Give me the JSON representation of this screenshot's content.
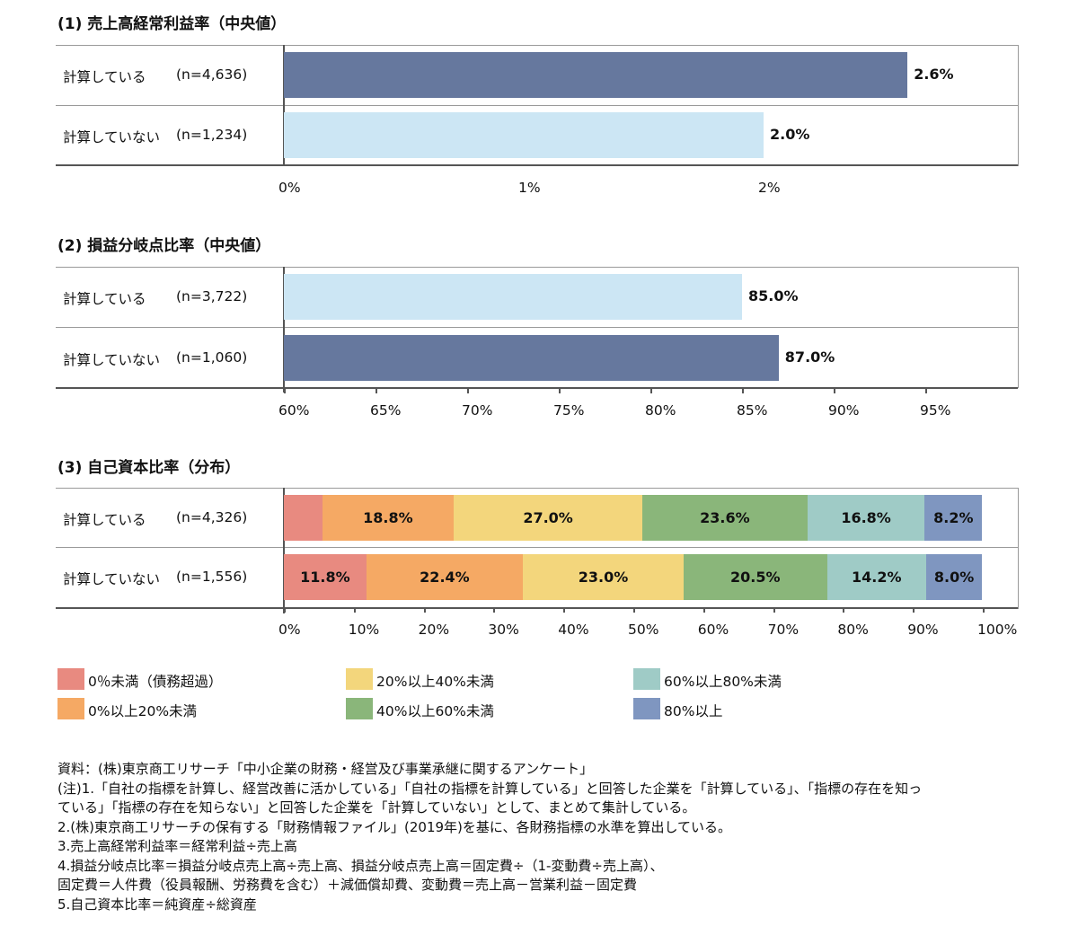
{
  "colors": {
    "dark_blue": "#66789e",
    "light_blue": "#cce6f4",
    "axis": "#555555",
    "grid": "#9a9a9a",
    "seg": [
      "#e88a80",
      "#f5a964",
      "#f3d67c",
      "#8ab67a",
      "#9fcbc6",
      "#7f96c0"
    ]
  },
  "chart_data": [
    {
      "type": "bar",
      "orientation": "horizontal",
      "title": "(1) 売上高経常利益率（中央値）",
      "categories": [
        "計算している",
        "計算していない"
      ],
      "n_labels": [
        "(n=4,636)",
        "(n=1,234)"
      ],
      "values": [
        2.6,
        2.0
      ],
      "value_labels": [
        "2.6%",
        "2.0%"
      ],
      "bar_colors": [
        "#66789e",
        "#cce6f4"
      ],
      "xlim": [
        0,
        3
      ],
      "xticks": [
        0,
        1,
        2
      ],
      "xtick_labels": [
        "0%",
        "1%",
        "2%"
      ]
    },
    {
      "type": "bar",
      "orientation": "horizontal",
      "title": "(2) 損益分岐点比率（中央値）",
      "categories": [
        "計算している",
        "計算していない"
      ],
      "n_labels": [
        "(n=3,722)",
        "(n=1,060)"
      ],
      "values": [
        85.0,
        87.0
      ],
      "value_labels": [
        "85.0%",
        "87.0%"
      ],
      "bar_colors": [
        "#cce6f4",
        "#66789e"
      ],
      "xlim": [
        60,
        100
      ],
      "xticks": [
        60,
        65,
        70,
        75,
        80,
        85,
        90,
        95
      ],
      "xtick_labels": [
        "60%",
        "65%",
        "70%",
        "75%",
        "80%",
        "85%",
        "90%",
        "95%"
      ]
    },
    {
      "type": "bar",
      "orientation": "horizontal",
      "stacked": true,
      "title": "(3) 自己資本比率（分布）",
      "categories": [
        "計算している",
        "計算していない"
      ],
      "n_labels": [
        "(n=4,326)",
        "(n=1,556)"
      ],
      "series": [
        {
          "name": "0％未満（債務超過）",
          "values": [
            5.5,
            11.8
          ],
          "labels": [
            "",
            "11.8%"
          ]
        },
        {
          "name": "0%以上20%未満",
          "values": [
            18.8,
            22.4
          ],
          "labels": [
            "18.8%",
            "22.4%"
          ]
        },
        {
          "name": "20%以上40%未満",
          "values": [
            27.0,
            23.0
          ],
          "labels": [
            "27.0%",
            "23.0%"
          ]
        },
        {
          "name": "40%以上60%未満",
          "values": [
            23.6,
            20.5
          ],
          "labels": [
            "23.6%",
            "20.5%"
          ]
        },
        {
          "name": "60%以上80%未満",
          "values": [
            16.8,
            14.2
          ],
          "labels": [
            "16.8%",
            "14.2%"
          ]
        },
        {
          "name": "80%以上",
          "values": [
            8.2,
            8.0
          ],
          "labels": [
            "8.2%",
            "8.0%"
          ]
        }
      ],
      "xlim": [
        0,
        105
      ],
      "xticks": [
        0,
        10,
        20,
        30,
        40,
        50,
        60,
        70,
        80,
        90,
        100
      ],
      "xtick_labels": [
        "0%",
        "10%",
        "20%",
        "30%",
        "40%",
        "50%",
        "60%",
        "70%",
        "80%",
        "90%",
        "100%"
      ],
      "legend_position": "bottom"
    }
  ],
  "notes": [
    "資料：(株)東京商工リサーチ「中小企業の財務・経営及び事業承継に関するアンケート」",
    "(注)1.「自社の指標を計算し、経営改善に活かしている」「自社の指標を計算している」と回答した企業を「計算している」、「指標の存在を知っ",
    "ている」「指標の存在を知らない」と回答した企業を「計算していない」として、まとめて集計している。",
    "2.(株)東京商工リサーチの保有する「財務情報ファイル」(2019年)を基に、各財務指標の水準を算出している。",
    "3.売上高経常利益率＝経常利益÷売上高",
    "4.損益分岐点比率＝損益分岐点売上高÷売上高、損益分岐点売上高＝固定費÷（1-変動費÷売上高）、",
    "固定費＝人件費（役員報酬、労務費を含む）＋減価償却費、変動費＝売上高－営業利益－固定費",
    "5.自己資本比率＝純資産÷総資産"
  ]
}
